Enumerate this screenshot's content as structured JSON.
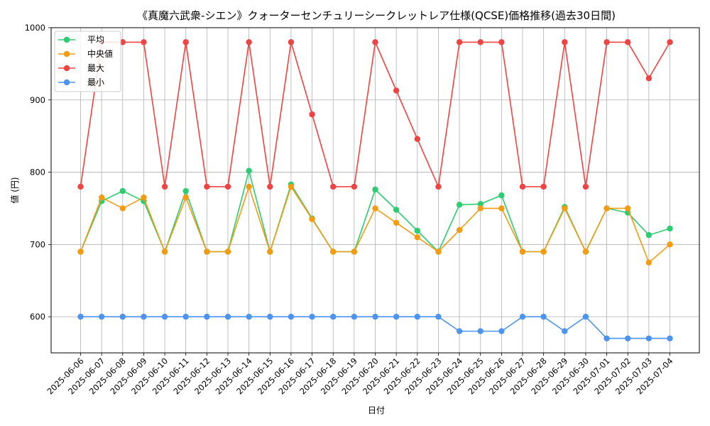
{
  "chart_data": {
    "type": "line",
    "title": "《真魔六武衆-シエン》クォーターセンチュリーシークレットレア仕様(QCSE)価格推移(過去30日間)",
    "xlabel": "日付",
    "ylabel": "値 (円)",
    "ylim": [
      550,
      1000
    ],
    "yticks": [
      600,
      700,
      800,
      900,
      1000
    ],
    "grid": true,
    "legend_position": "top-left",
    "categories": [
      "2025-06-06",
      "2025-06-07",
      "2025-06-08",
      "2025-06-09",
      "2025-06-10",
      "2025-06-11",
      "2025-06-12",
      "2025-06-13",
      "2025-06-14",
      "2025-06-15",
      "2025-06-16",
      "2025-06-17",
      "2025-06-18",
      "2025-06-19",
      "2025-06-20",
      "2025-06-21",
      "2025-06-22",
      "2025-06-23",
      "2025-06-24",
      "2025-06-25",
      "2025-06-26",
      "2025-06-27",
      "2025-06-28",
      "2025-06-29",
      "2025-06-30",
      "2025-07-01",
      "2025-07-02",
      "2025-07-03",
      "2025-07-04"
    ],
    "series": [
      {
        "name": "平均",
        "color": "#2ecc71",
        "values": [
          690,
          760,
          774,
          760,
          690,
          774,
          690,
          690,
          802,
          690,
          783,
          736,
          690,
          690,
          776,
          748,
          719,
          690,
          755,
          756,
          768,
          690,
          690,
          752,
          690,
          750,
          744,
          713,
          722
        ]
      },
      {
        "name": "中央値",
        "color": "#f39c12",
        "values": [
          690,
          765,
          750,
          765,
          690,
          765,
          690,
          690,
          780,
          690,
          780,
          735,
          690,
          690,
          750,
          730,
          710,
          690,
          720,
          750,
          750,
          690,
          690,
          750,
          690,
          750,
          750,
          675,
          700
        ]
      },
      {
        "name": "最大",
        "color": "#ef4444",
        "values": [
          780,
          980,
          980,
          980,
          780,
          980,
          780,
          780,
          980,
          780,
          980,
          880,
          780,
          780,
          980,
          913,
          846,
          780,
          980,
          980,
          980,
          780,
          780,
          980,
          780,
          980,
          980,
          930,
          980
        ]
      },
      {
        "name": "最小",
        "color": "#4d94ef",
        "values": [
          600,
          600,
          600,
          600,
          600,
          600,
          600,
          600,
          600,
          600,
          600,
          600,
          600,
          600,
          600,
          600,
          600,
          600,
          580,
          580,
          580,
          600,
          600,
          580,
          600,
          570,
          570,
          570,
          570
        ]
      }
    ]
  }
}
